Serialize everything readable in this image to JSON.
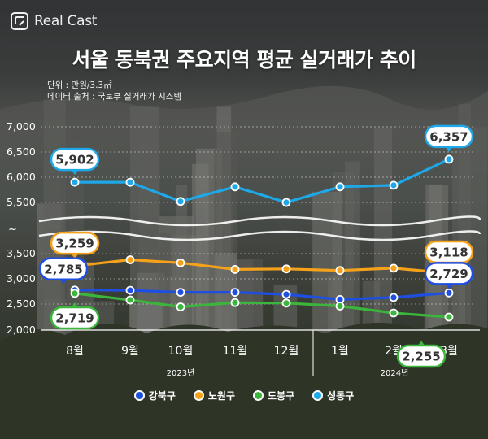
{
  "logo": {
    "text": "Real Cast",
    "icon": "realcast-logo-icon"
  },
  "title": "서울 동북권 주요지역 평균 실거래가 추이",
  "notes": {
    "unit": "단위 : 만원/3.3㎡",
    "source": "데이터 출처 : 국토부 실거래가 시스템"
  },
  "colors": {
    "강북구": "#1f4fe0",
    "노원구": "#f5a11a",
    "도봉구": "#3bb53b",
    "성동구": "#1fa8e8"
  },
  "chart_data": {
    "type": "line",
    "title": "서울 동북권 주요지역 평균 실거래가 추이",
    "categories": [
      "8월",
      "9월",
      "10월",
      "11월",
      "12월",
      "1월",
      "2월",
      "3월"
    ],
    "year_labels": [
      {
        "label": "2023년",
        "span": [
          0,
          4
        ]
      },
      {
        "label": "2024년",
        "span": [
          5,
          7
        ]
      }
    ],
    "axis_break": "~",
    "y_ticks_upper": [
      "7,000",
      "6,500",
      "6,000",
      "5,500"
    ],
    "y_ticks_lower": [
      "3,500",
      "3,000",
      "2,500",
      "2,000"
    ],
    "upper_ylim": [
      5500,
      7000
    ],
    "lower_ylim": [
      2000,
      3500
    ],
    "series": [
      {
        "name": "성동구",
        "values": [
          5902,
          5900,
          5520,
          5810,
          5500,
          5810,
          5840,
          6357
        ]
      },
      {
        "name": "노원구",
        "values": [
          3259,
          3380,
          3320,
          3190,
          3200,
          3170,
          3215,
          3118
        ]
      },
      {
        "name": "강북구",
        "values": [
          2785,
          2780,
          2740,
          2740,
          2700,
          2600,
          2640,
          2729
        ]
      },
      {
        "name": "도봉구",
        "values": [
          2719,
          2590,
          2455,
          2540,
          2530,
          2470,
          2335,
          2255
        ]
      }
    ],
    "data_labels": [
      {
        "series": "성동구",
        "index": 0,
        "text": "5,902"
      },
      {
        "series": "성동구",
        "index": 7,
        "text": "6,357"
      },
      {
        "series": "노원구",
        "index": 0,
        "text": "3,259"
      },
      {
        "series": "노원구",
        "index": 7,
        "text": "3,118"
      },
      {
        "series": "강북구",
        "index": 0,
        "text": "2,785"
      },
      {
        "series": "강북구",
        "index": 7,
        "text": "2,729"
      },
      {
        "series": "도봉구",
        "index": 0,
        "text": "2,719"
      },
      {
        "series": "도봉구",
        "index": 7,
        "text": "2,255"
      }
    ],
    "legend_position": "bottom"
  }
}
